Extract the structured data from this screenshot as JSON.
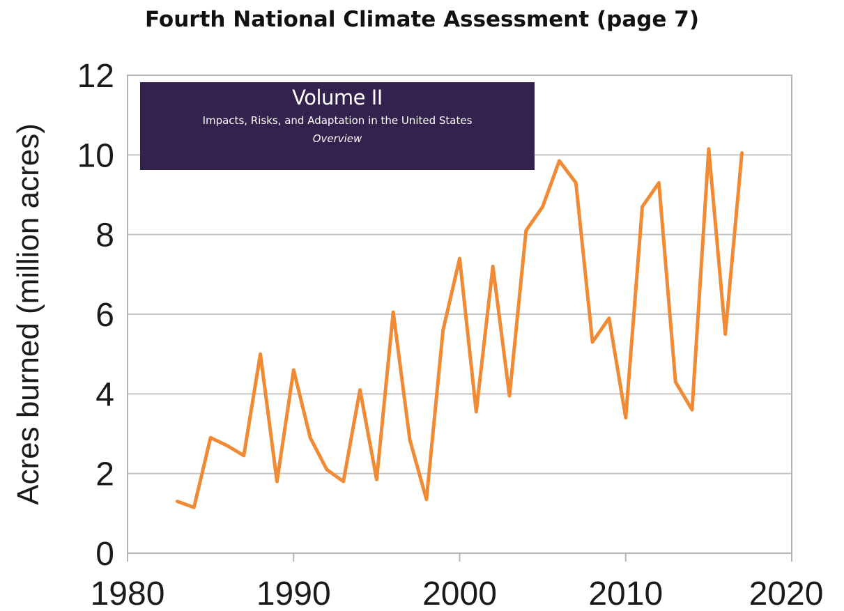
{
  "page_title": "Fourth National Climate Assessment (page 7)",
  "banner": {
    "title": "Volume II",
    "subtitle": "Impacts, Risks, and Adaptation in the United States",
    "section": "Overview",
    "background_color": "#33224d"
  },
  "chart_data": {
    "type": "line",
    "title": "",
    "xlabel": "",
    "ylabel": "Acres burned (million acres)",
    "xlim": [
      1980,
      2020
    ],
    "ylim": [
      0,
      12
    ],
    "x_ticks": [
      "1980",
      "1990",
      "2000",
      "2010",
      "2020"
    ],
    "y_ticks": [
      "0",
      "2",
      "4",
      "6",
      "8",
      "10",
      "12"
    ],
    "grid": true,
    "line_color": "#f08a34",
    "series": [
      {
        "x": [
          1983,
          1984,
          1985,
          1986,
          1987,
          1988,
          1989,
          1990,
          1991,
          1992,
          1993,
          1994,
          1995,
          1996,
          1997,
          1998,
          1999,
          2000,
          2001,
          2002,
          2003,
          2004,
          2005,
          2006,
          2007,
          2008,
          2009,
          2010,
          2011,
          2012,
          2013,
          2014,
          2015,
          2016,
          2017
        ],
        "values": [
          1.3,
          1.15,
          2.9,
          2.7,
          2.45,
          5.0,
          1.8,
          4.6,
          2.9,
          2.1,
          1.8,
          4.1,
          1.85,
          6.05,
          2.85,
          1.35,
          5.6,
          7.4,
          3.55,
          7.2,
          3.95,
          8.1,
          8.7,
          9.85,
          9.3,
          5.3,
          5.9,
          3.4,
          8.7,
          9.3,
          4.3,
          3.6,
          10.15,
          5.5,
          10.05
        ]
      }
    ]
  }
}
